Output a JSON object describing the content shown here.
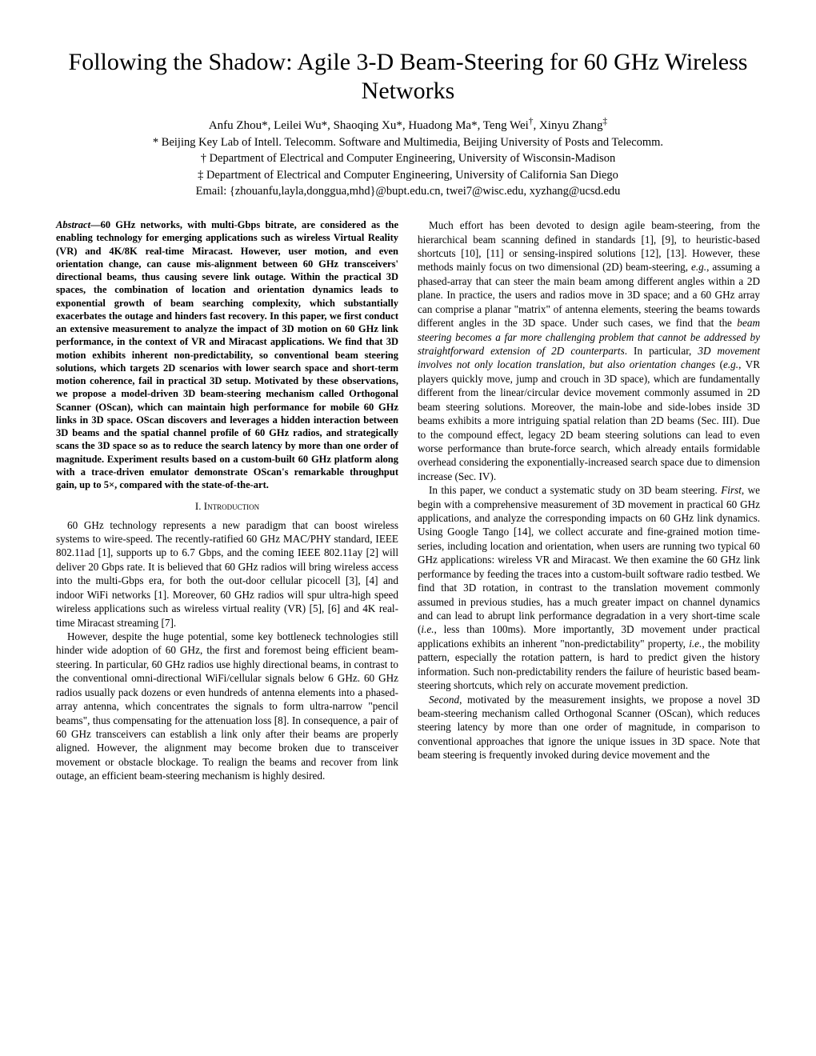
{
  "title": "Following the Shadow: Agile 3-D Beam-Steering for 60 GHz Wireless Networks",
  "authors_html": "Anfu Zhou*, Leilei Wu*, Shaoqing Xu*, Huadong Ma*, Teng Wei†, Xinyu Zhang‡",
  "affiliations": {
    "a1": "* Beijing Key Lab of Intell. Telecomm. Software and Multimedia, Beijing University of Posts and Telecomm.",
    "a2": "† Department of Electrical and Computer Engineering, University of Wisconsin-Madison",
    "a3": "‡ Department of Electrical and Computer Engineering, University of California San Diego",
    "email": "Email: {zhouanfu,layla,donggua,mhd}@bupt.edu.cn, twei7@wisc.edu, xyzhang@ucsd.edu"
  },
  "abstract_label": "Abstract",
  "abstract_text": "—60 GHz networks, with multi-Gbps bitrate, are considered as the enabling technology for emerging applications such as wireless Virtual Reality (VR) and 4K/8K real-time Miracast. However, user motion, and even orientation change, can cause mis-alignment between 60 GHz transceivers' directional beams, thus causing severe link outage. Within the practical 3D spaces, the combination of location and orientation dynamics leads to exponential growth of beam searching complexity, which substantially exacerbates the outage and hinders fast recovery. In this paper, we first conduct an extensive measurement to analyze the impact of 3D motion on 60 GHz link performance, in the context of VR and Miracast applications. We find that 3D motion exhibits inherent non-predictability, so conventional beam steering solutions, which targets 2D scenarios with lower search space and short-term motion coherence, fail in practical 3D setup. Motivated by these observations, we propose a model-driven 3D beam-steering mechanism called Orthogonal Scanner (OScan), which can maintain high performance for mobile 60 GHz links in 3D space. OScan discovers and leverages a hidden interaction between 3D beams and the spatial channel profile of 60 GHz radios, and strategically scans the 3D space so as to reduce the search latency by more than one order of magnitude. Experiment results based on a custom-built 60 GHz platform along with a trace-driven emulator demonstrate OScan's remarkable throughput gain, up to 5×, compared with the state-of-the-art.",
  "section1_heading": "I. Introduction",
  "left_p1": "60 GHz technology represents a new paradigm that can boost wireless systems to wire-speed. The recently-ratified 60 GHz MAC/PHY standard, IEEE 802.11ad [1], supports up to 6.7 Gbps, and the coming IEEE 802.11ay [2] will deliver 20 Gbps rate. It is believed that 60 GHz radios will bring wireless access into the multi-Gbps era, for both the out-door cellular picocell [3], [4] and indoor WiFi networks [1]. Moreover, 60 GHz radios will spur ultra-high speed wireless applications such as wireless virtual reality (VR) [5], [6] and 4K real-time Miracast streaming [7].",
  "left_p2": "However, despite the huge potential, some key bottleneck technologies still hinder wide adoption of 60 GHz, the first and foremost being efficient beam-steering. In particular, 60 GHz radios use highly directional beams, in contrast to the conventional omni-directional WiFi/cellular signals below 6 GHz. 60 GHz radios usually pack dozens or even hundreds of antenna elements into a phased-array antenna, which concentrates the signals to form ultra-narrow \"pencil beams\", thus compensating for the attenuation loss [8]. In consequence, a pair of 60 GHz transceivers can establish a link only after their beams are properly aligned. However, the alignment may become broken due to transceiver movement or obstacle blockage. To realign the beams and recover from link outage, an efficient beam-steering mechanism is highly desired.",
  "right_p1_a": "Much effort has been devoted to design agile beam-steering, from the hierarchical beam scanning defined in standards [1], [9], to heuristic-based shortcuts [10], [11] or sensing-inspired solutions [12], [13]. However, these methods mainly focus on two dimensional (2D) beam-steering, ",
  "right_p1_eg": "e.g.",
  "right_p1_b": ", assuming a phased-array that can steer the main beam among different angles within a 2D plane. In practice, the users and radios move in 3D space; and a 60 GHz array can comprise a planar \"matrix\" of antenna elements, steering the beams towards different angles in the 3D space. Under such cases, we find that the ",
  "right_p1_i1": "beam steering becomes a far more challenging problem that cannot be addressed by straightforward extension of 2D counterparts",
  "right_p1_c": ". In particular, ",
  "right_p1_i2": "3D movement involves not only location translation, but also orientation changes",
  "right_p1_d": " (",
  "right_p1_eg2": "e.g.",
  "right_p1_e": ", VR players quickly move, jump and crouch in 3D space), which are fundamentally different from the linear/circular device movement commonly assumed in 2D beam steering solutions. Moreover, the main-lobe and side-lobes inside 3D beams exhibits a more intriguing spatial relation than 2D beams (Sec. III). Due to the compound effect, legacy 2D beam steering solutions can lead to even worse performance than brute-force search, which already entails formidable overhead considering the exponentially-increased search space due to dimension increase (Sec. IV).",
  "right_p2_a": "In this paper, we conduct a systematic study on 3D beam steering. ",
  "right_p2_first": "First",
  "right_p2_b": ", we begin with a comprehensive measurement of 3D movement in practical 60 GHz applications, and analyze the corresponding impacts on 60 GHz link dynamics. Using Google Tango [14], we collect accurate and fine-grained motion time-series, including location and orientation, when users are running two typical 60 GHz applications: wireless VR and Miracast. We then examine the 60 GHz link performance by feeding the traces into a custom-built software radio testbed. We find that 3D rotation, in contrast to the translation movement commonly assumed in previous studies, has a much greater impact on channel dynamics and can lead to abrupt link performance degradation in a very short-time scale (",
  "right_p2_ie": "i.e.",
  "right_p2_c": ", less than 100ms). More importantly, 3D movement under practical applications exhibits an inherent \"non-predictability\" property, ",
  "right_p2_ie2": "i.e.",
  "right_p2_d": ", the mobility pattern, especially the rotation pattern, is hard to predict given the history information. Such non-predictability renders the failure of heuristic based beam-steering shortcuts, which rely on accurate movement prediction.",
  "right_p3_second": "Second",
  "right_p3_a": ", motivated by the measurement insights, we propose a novel 3D beam-steering mechanism called Orthogonal Scanner (OScan), which reduces steering latency by more than one order of magnitude, in comparison to conventional approaches that ignore the unique issues in 3D space. Note that beam steering is frequently invoked during device movement and the"
}
